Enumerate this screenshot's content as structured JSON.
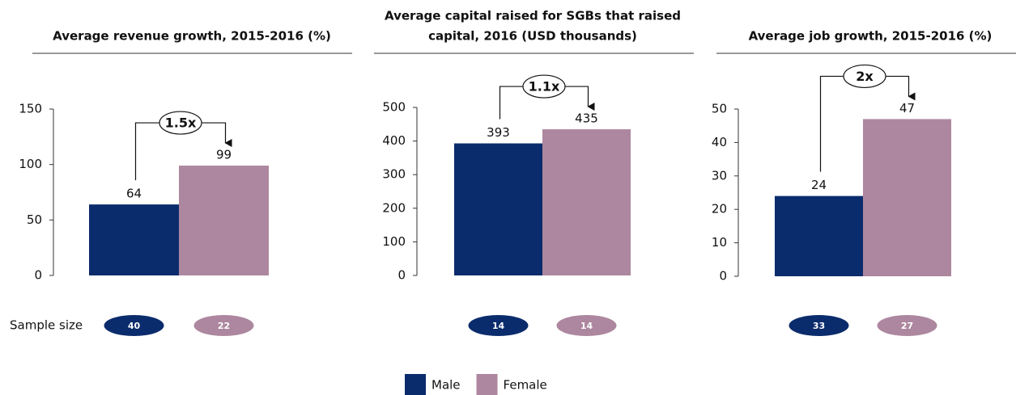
{
  "chart_data": [
    {
      "type": "bar",
      "title": [
        "Average revenue growth, 2015-2016 (%)"
      ],
      "series": [
        {
          "name": "Male",
          "color": "#0b2c6c",
          "values": [
            64
          ]
        },
        {
          "name": "Female",
          "color": "#ad879f",
          "values": [
            99
          ]
        }
      ],
      "ylim": [
        0,
        150
      ],
      "yticks": [
        0,
        50,
        100,
        150
      ],
      "annotation": "1.5x",
      "sample_sizes": [
        40,
        22
      ]
    },
    {
      "type": "bar",
      "title": [
        "Average capital raised for SGBs that raised",
        "capital, 2016 (USD thousands)"
      ],
      "series": [
        {
          "name": "Male",
          "color": "#0b2c6c",
          "values": [
            393
          ]
        },
        {
          "name": "Female",
          "color": "#ad879f",
          "values": [
            435
          ]
        }
      ],
      "ylim": [
        0,
        500
      ],
      "yticks": [
        0,
        100,
        200,
        300,
        400,
        500
      ],
      "annotation": "1.1x",
      "sample_sizes": [
        14,
        14
      ]
    },
    {
      "type": "bar",
      "title": [
        "Average job growth, 2015-2016 (%)"
      ],
      "series": [
        {
          "name": "Male",
          "color": "#0b2c6c",
          "values": [
            24
          ]
        },
        {
          "name": "Female",
          "color": "#ad879f",
          "values": [
            47
          ]
        }
      ],
      "ylim": [
        0,
        50
      ],
      "yticks": [
        0,
        10,
        20,
        30,
        40,
        50
      ],
      "annotation": "2x",
      "sample_sizes": [
        33,
        27
      ]
    }
  ],
  "sample_size_label": "Sample size"
}
